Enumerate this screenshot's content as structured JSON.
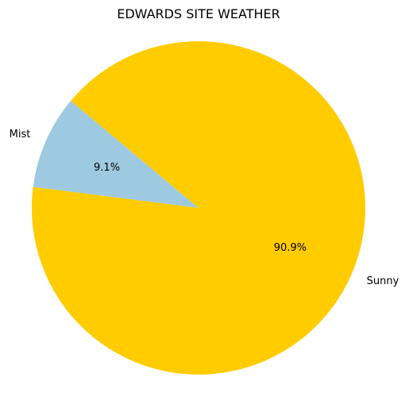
{
  "chart_data": {
    "type": "pie",
    "title": "EDWARDS SITE WEATHER",
    "slices": [
      {
        "label": "Mist",
        "value": 9.1,
        "pct_label": "9.1%",
        "color": "#9ecae1"
      },
      {
        "label": "Sunny",
        "value": 90.9,
        "pct_label": "90.9%",
        "color": "#ffcc00"
      }
    ],
    "start_angle_deg": 140,
    "direction": "counterclockwise"
  }
}
